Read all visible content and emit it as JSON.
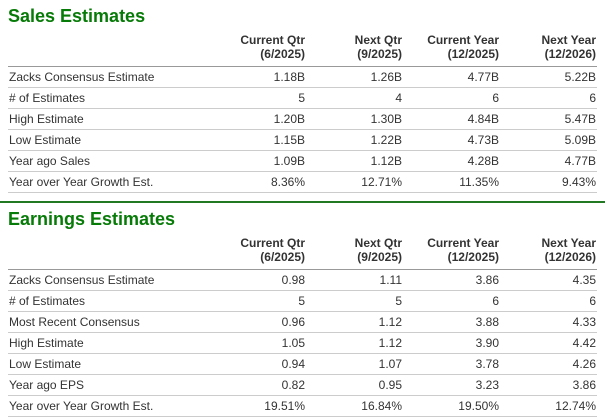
{
  "colors": {
    "heading_green": "#077b07",
    "divider_green": "#217a21",
    "header_border": "#999999",
    "row_border": "#cccccc",
    "text": "#333333"
  },
  "columns": [
    {
      "label": "Current Qtr",
      "period": "(6/2025)"
    },
    {
      "label": "Next Qtr",
      "period": "(9/2025)"
    },
    {
      "label": "Current Year",
      "period": "(12/2025)"
    },
    {
      "label": "Next Year",
      "period": "(12/2026)"
    }
  ],
  "sales": {
    "title": "Sales Estimates",
    "rows": [
      {
        "label": "Zacks Consensus Estimate",
        "values": [
          "1.18B",
          "1.26B",
          "4.77B",
          "5.22B"
        ]
      },
      {
        "label": "# of Estimates",
        "values": [
          "5",
          "4",
          "6",
          "6"
        ]
      },
      {
        "label": "High Estimate",
        "values": [
          "1.20B",
          "1.30B",
          "4.84B",
          "5.47B"
        ]
      },
      {
        "label": "Low Estimate",
        "values": [
          "1.15B",
          "1.22B",
          "4.73B",
          "5.09B"
        ]
      },
      {
        "label": "Year ago Sales",
        "values": [
          "1.09B",
          "1.12B",
          "4.28B",
          "4.77B"
        ]
      },
      {
        "label": "Year over Year Growth Est.",
        "values": [
          "8.36%",
          "12.71%",
          "11.35%",
          "9.43%"
        ]
      }
    ]
  },
  "earnings": {
    "title": "Earnings Estimates",
    "rows": [
      {
        "label": "Zacks Consensus Estimate",
        "values": [
          "0.98",
          "1.11",
          "3.86",
          "4.35"
        ]
      },
      {
        "label": "# of Estimates",
        "values": [
          "5",
          "5",
          "6",
          "6"
        ]
      },
      {
        "label": "Most Recent Consensus",
        "values": [
          "0.96",
          "1.12",
          "3.88",
          "4.33"
        ]
      },
      {
        "label": "High Estimate",
        "values": [
          "1.05",
          "1.12",
          "3.90",
          "4.42"
        ]
      },
      {
        "label": "Low Estimate",
        "values": [
          "0.94",
          "1.07",
          "3.78",
          "4.26"
        ]
      },
      {
        "label": "Year ago EPS",
        "values": [
          "0.82",
          "0.95",
          "3.23",
          "3.86"
        ]
      },
      {
        "label": "Year over Year Growth Est.",
        "values": [
          "19.51%",
          "16.84%",
          "19.50%",
          "12.74%"
        ]
      }
    ]
  }
}
